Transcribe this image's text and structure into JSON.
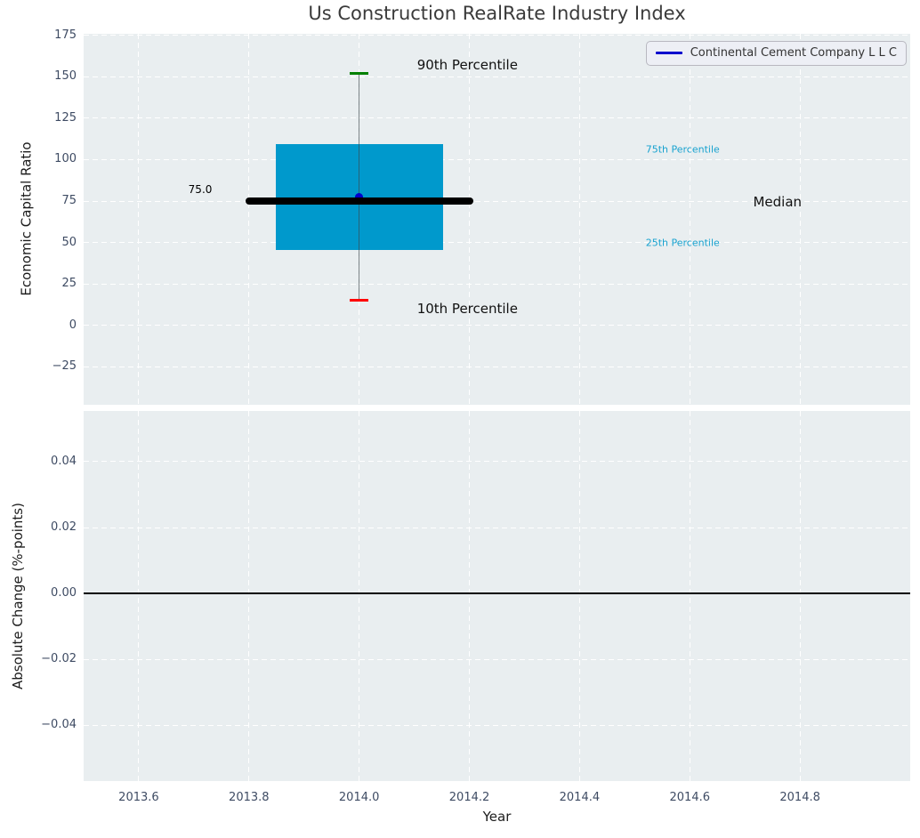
{
  "chart": {
    "title": "Us Construction RealRate Industry Index",
    "legend": {
      "label": "Continental Cement Company L L C",
      "line_color": "#0000cd"
    },
    "colors": {
      "box_fill": "#0099cc",
      "median_line": "#000000",
      "whisker_line": "rgba(60,70,75,0.65)",
      "cap_top": "#008000",
      "cap_bottom": "#ff0000",
      "point": "#0000cd",
      "zero_line": "#000000",
      "cyan_label": "#17a2cf",
      "dark_label": "#111111",
      "plot_background": "#e9eef0",
      "grid": "#ffffff",
      "tick_label": "#3e4b63"
    }
  },
  "chart_data": [
    {
      "type": "boxplot",
      "title": "Us Construction RealRate Industry Index",
      "xlabel": "",
      "ylabel": "Economic Capital Ratio",
      "xlim": [
        2013.5,
        2015.0
      ],
      "ylim": [
        -48,
        176
      ],
      "grid": true,
      "xticks": [
        2013.6,
        2013.8,
        2014.0,
        2014.2,
        2014.4,
        2014.6,
        2014.8
      ],
      "xtick_labels": null,
      "yticks": [
        175,
        150,
        125,
        100,
        75,
        50,
        25,
        0,
        -25
      ],
      "ytick_labels": [
        "175",
        "150",
        "125",
        "100",
        "75",
        "50",
        "25",
        "0",
        "−25"
      ],
      "box": {
        "x": 2014.0,
        "p10": 15,
        "q1": 45.5,
        "median": 75.0,
        "q3": 109.4,
        "p90": 152,
        "box_halfwidth": 0.152,
        "median_halfwidth": 0.2,
        "cap_halfwidth": 0.0165
      },
      "series": [
        {
          "name": "Continental Cement Company L L C",
          "x": [
            2014.0
          ],
          "y": [
            77.4
          ]
        }
      ],
      "annotations": [
        {
          "text": "75.0",
          "x": 2013.69,
          "y": 82,
          "size": 12,
          "color": "#000000"
        },
        {
          "text": "90th Percentile",
          "x": 2014.105,
          "y": 157,
          "size": 15,
          "color": "#111111"
        },
        {
          "text": "10th Percentile",
          "x": 2014.105,
          "y": 10,
          "size": 15,
          "color": "#111111"
        },
        {
          "text": "75th Percentile",
          "x": 2014.52,
          "y": 106,
          "size": 11,
          "color": "#17a2cf"
        },
        {
          "text": "25th Percentile",
          "x": 2014.52,
          "y": 50,
          "size": 11,
          "color": "#17a2cf"
        },
        {
          "text": "Median",
          "x": 2014.715,
          "y": 74.5,
          "size": 15,
          "color": "#111111"
        }
      ],
      "legend_position": "upper right"
    },
    {
      "type": "line",
      "title": "",
      "xlabel": "Year",
      "ylabel": "Absolute Change (%-points)",
      "xlim": [
        2013.5,
        2015.0
      ],
      "ylim": [
        -0.057,
        0.0554
      ],
      "grid": true,
      "xticks": [
        2013.6,
        2013.8,
        2014.0,
        2014.2,
        2014.4,
        2014.6,
        2014.8
      ],
      "xtick_labels": [
        "2013.6",
        "2013.8",
        "2014.0",
        "2014.2",
        "2014.4",
        "2014.6",
        "2014.8"
      ],
      "yticks": [
        0.04,
        0.02,
        0.0,
        -0.02,
        -0.04
      ],
      "ytick_labels": [
        "0.04",
        "0.02",
        "0.00",
        "−0.02",
        "−0.04"
      ],
      "zero_line": 0.0,
      "series": []
    }
  ]
}
